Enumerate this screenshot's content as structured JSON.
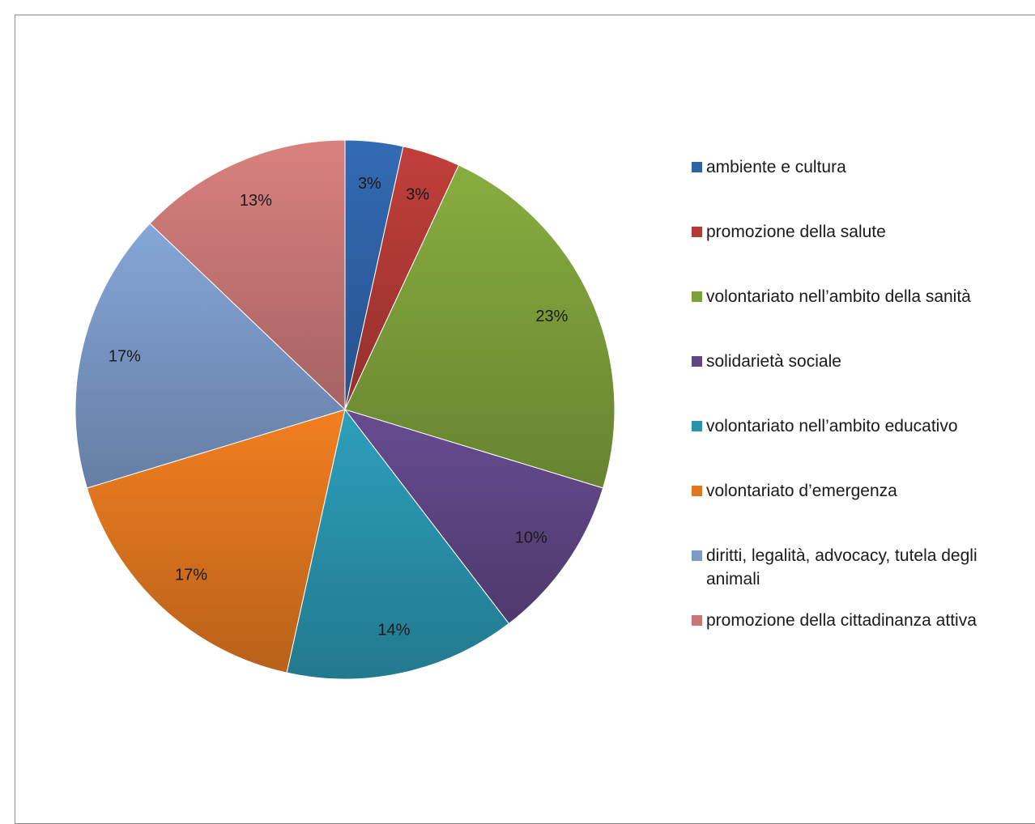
{
  "chart_data": {
    "type": "pie",
    "title": "",
    "legend_position": "right",
    "slices": [
      {
        "name": "ambiente e cultura",
        "value": 3.5,
        "label": "3%",
        "color": "#2f63a8"
      },
      {
        "name": "promozione della salute",
        "value": 3.5,
        "label": "3%",
        "color": "#b33a36"
      },
      {
        "name": "volontariato nell’ambito della sanità",
        "value": 23,
        "label": "23%",
        "color": "#7ea03a"
      },
      {
        "name": "solidarietà sociale",
        "value": 10,
        "label": "10%",
        "color": "#5f4685"
      },
      {
        "name": "volontariato nell’ambito educativo",
        "value": 14,
        "label": "14%",
        "color": "#2a93ad"
      },
      {
        "name": "volontariato d’emergenza",
        "value": 17,
        "label": "17%",
        "color": "#e0761f"
      },
      {
        "name": "diritti, legalità, advocacy, tutela degli animali",
        "value": 17,
        "label": "17%",
        "color": "#7b9ac8"
      },
      {
        "name": "promozione della cittadinanza attiva",
        "value": 13,
        "label": "13%",
        "color": "#c97776"
      }
    ]
  }
}
